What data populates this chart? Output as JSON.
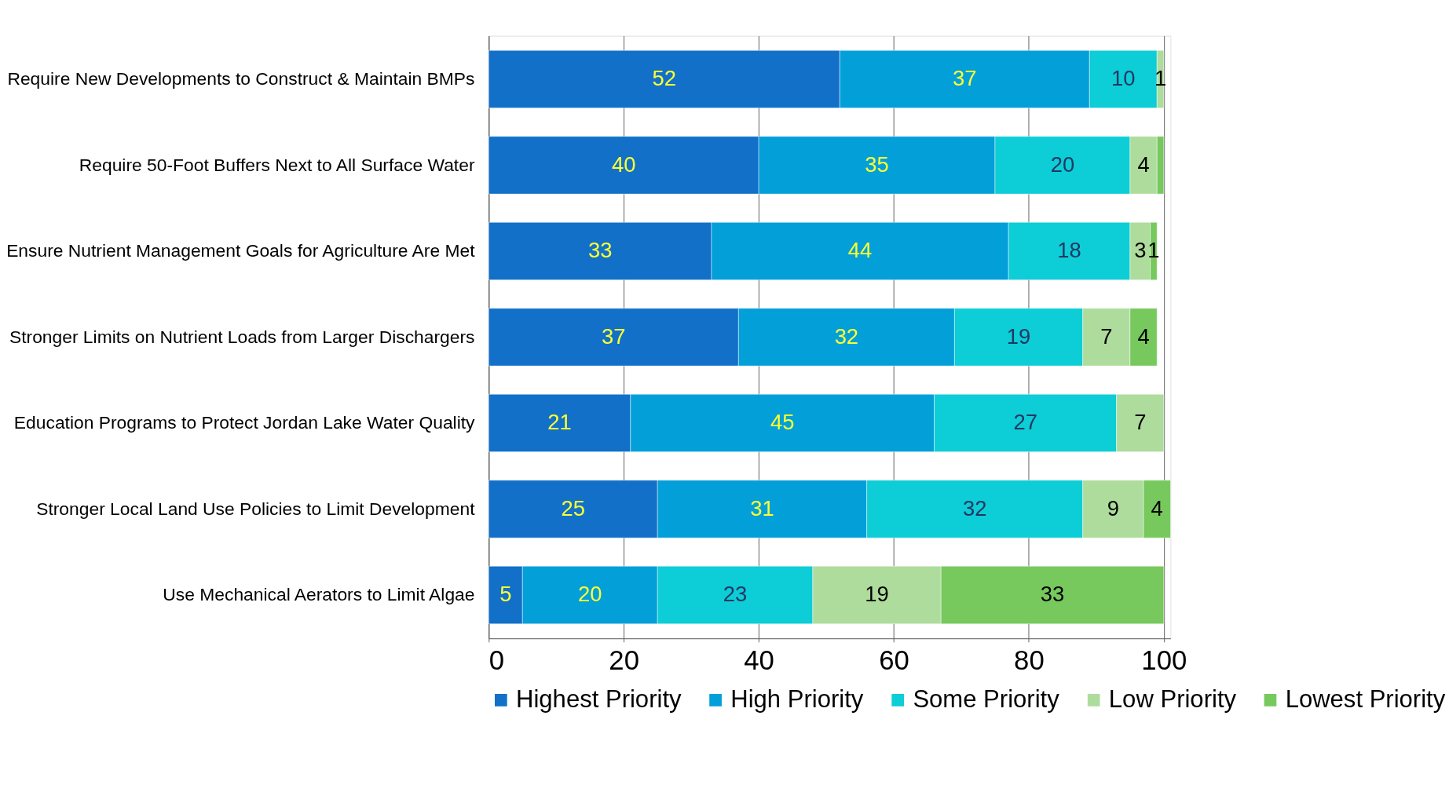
{
  "chart_data": {
    "type": "bar",
    "orientation": "horizontal",
    "stacked": true,
    "categories": [
      "Require New Developments to Construct & Maintain BMPs",
      "Require 50-Foot Buffers Next to All Surface Water",
      "Ensure Nutrient Management Goals for Agriculture Are Met",
      "Stronger Limits on Nutrient Loads from Larger Dischargers",
      "Education Programs to Protect Jordan Lake Water Quality",
      "Stronger Local Land Use Policies to Limit Development",
      "Use Mechanical Aerators to Limit Algae"
    ],
    "series": [
      {
        "name": "Highest Priority",
        "color": "#1270c8",
        "values": [
          52,
          40,
          33,
          37,
          21,
          25,
          5
        ],
        "value_labels": [
          "52",
          "40",
          "33",
          "37",
          "21",
          "25",
          "5"
        ]
      },
      {
        "name": "High Priority",
        "color": "#039fd9",
        "values": [
          37,
          35,
          44,
          32,
          45,
          31,
          20
        ],
        "value_labels": [
          "37",
          "35",
          "44",
          "32",
          "45",
          "31",
          "20"
        ]
      },
      {
        "name": "Some Priority",
        "color": "#0dcdd6",
        "values": [
          10,
          20,
          18,
          19,
          27,
          32,
          23
        ],
        "value_labels": [
          "10",
          "20",
          "18",
          "19",
          "27",
          "32",
          "23"
        ]
      },
      {
        "name": "Low Priority",
        "color": "#aedc9c",
        "values": [
          1,
          4,
          3,
          7,
          7,
          9,
          19
        ],
        "value_labels": [
          "1",
          "4",
          "3",
          "7",
          "7",
          "9",
          "19"
        ]
      },
      {
        "name": "Lowest Priority",
        "color": "#77c95e",
        "values": [
          null,
          1,
          1,
          4,
          null,
          4,
          33
        ],
        "value_labels": [
          null,
          null,
          "1",
          "4",
          null,
          "4",
          "33"
        ]
      }
    ],
    "xlim": [
      0,
      101
    ],
    "xticks": [
      0,
      20,
      40,
      60,
      80,
      100
    ],
    "grid": "x",
    "legend": "bottom"
  }
}
